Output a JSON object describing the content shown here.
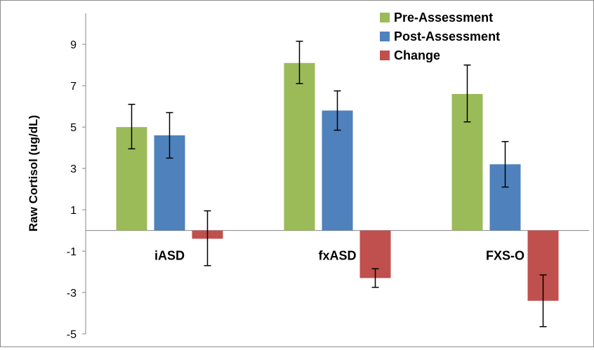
{
  "chart_data": {
    "type": "bar",
    "title": "",
    "xlabel": "",
    "ylabel": "Raw Cortisol (ug/dL)",
    "ylim": [
      -5,
      10.5
    ],
    "yticks": [
      -5,
      -3,
      -1,
      1,
      3,
      5,
      7,
      9
    ],
    "categories": [
      "iASD",
      "fxASD",
      "FXS-O"
    ],
    "series": [
      {
        "name": "Pre-Assessment",
        "color": "#9bbb59",
        "values": [
          5.0,
          8.1,
          6.6
        ],
        "error_low": [
          3.95,
          7.1,
          5.25
        ],
        "error_high": [
          6.1,
          9.15,
          8.0
        ]
      },
      {
        "name": "Post-Assessment",
        "color": "#4f81bd",
        "values": [
          4.6,
          5.8,
          3.2
        ],
        "error_low": [
          3.5,
          4.85,
          2.1
        ],
        "error_high": [
          5.7,
          6.75,
          4.3
        ]
      },
      {
        "name": "Change",
        "color": "#c0504d",
        "values": [
          -0.4,
          -2.3,
          -3.4
        ],
        "error_low": [
          -1.7,
          -2.75,
          -4.65
        ],
        "error_high": [
          0.95,
          -1.85,
          -2.15
        ]
      }
    ],
    "legend_position": "top-right",
    "grid": false
  }
}
